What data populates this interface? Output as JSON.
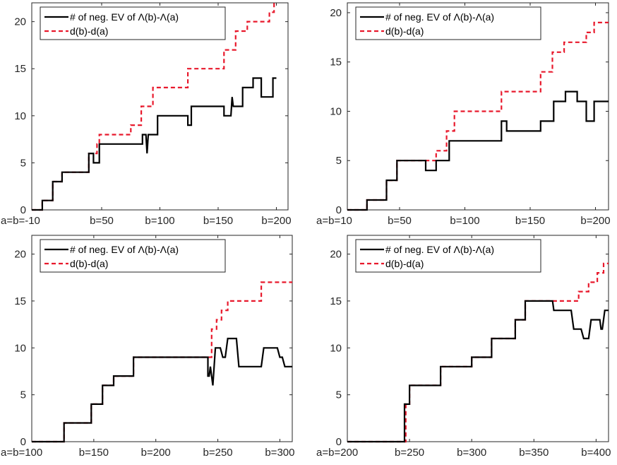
{
  "chart_data": [
    {
      "type": "line",
      "xlim": [
        -10,
        210
      ],
      "ylim": [
        0,
        22
      ],
      "x_ticks": [
        -10,
        50,
        100,
        150,
        200
      ],
      "x_tick_labels": [
        "a=b=-10",
        "b=50",
        "b=100",
        "b=150",
        "b=200"
      ],
      "y_ticks": [
        0,
        5,
        10,
        15,
        20
      ],
      "y_tick_labels": [
        "0",
        "5",
        "10",
        "15",
        "20"
      ],
      "legend_position": "top-left",
      "grid": false,
      "series": [
        {
          "name": "# of neg. EV of Λ(b)-Λ(a)",
          "color": "#000000",
          "style": "solid",
          "points": [
            [
              -10,
              0
            ],
            [
              -1,
              0
            ],
            [
              -1,
              1
            ],
            [
              8,
              1
            ],
            [
              8,
              3
            ],
            [
              16,
              3
            ],
            [
              16,
              4
            ],
            [
              39,
              4
            ],
            [
              39,
              6
            ],
            [
              43,
              6
            ],
            [
              43,
              5
            ],
            [
              48,
              5
            ],
            [
              48,
              7
            ],
            [
              85,
              7
            ],
            [
              85,
              8
            ],
            [
              88,
              8
            ],
            [
              89,
              6
            ],
            [
              90,
              8
            ],
            [
              98,
              8
            ],
            [
              98,
              10
            ],
            [
              124,
              10
            ],
            [
              124,
              9
            ],
            [
              127,
              9
            ],
            [
              127,
              11
            ],
            [
              155,
              11
            ],
            [
              155,
              10
            ],
            [
              161,
              10
            ],
            [
              162,
              12
            ],
            [
              163,
              11
            ],
            [
              171,
              11
            ],
            [
              171,
              13
            ],
            [
              180,
              13
            ],
            [
              180,
              14
            ],
            [
              187,
              14
            ],
            [
              187,
              12
            ],
            [
              197,
              12
            ],
            [
              197,
              14
            ],
            [
              200,
              14
            ]
          ]
        },
        {
          "name": "d(b)-d(a)",
          "color": "#e8192c",
          "style": "dashed",
          "points": [
            [
              -10,
              0
            ],
            [
              -1,
              0
            ],
            [
              -1,
              1
            ],
            [
              8,
              1
            ],
            [
              8,
              3
            ],
            [
              16,
              3
            ],
            [
              16,
              4
            ],
            [
              39,
              4
            ],
            [
              39,
              6
            ],
            [
              46,
              6
            ],
            [
              46,
              7
            ],
            [
              48,
              7
            ],
            [
              48,
              8
            ],
            [
              75,
              8
            ],
            [
              75,
              9
            ],
            [
              84,
              9
            ],
            [
              84,
              11
            ],
            [
              94,
              11
            ],
            [
              94,
              13
            ],
            [
              124,
              13
            ],
            [
              124,
              15
            ],
            [
              155,
              15
            ],
            [
              155,
              17
            ],
            [
              165,
              17
            ],
            [
              165,
              19
            ],
            [
              175,
              19
            ],
            [
              175,
              20
            ],
            [
              194,
              20
            ],
            [
              194,
              21
            ],
            [
              198,
              21
            ],
            [
              198,
              22
            ],
            [
              200,
              22
            ]
          ]
        }
      ]
    },
    {
      "type": "line",
      "xlim": [
        10,
        210
      ],
      "ylim": [
        0,
        21
      ],
      "x_ticks": [
        10,
        50,
        100,
        150,
        200
      ],
      "x_tick_labels": [
        "a=b=10",
        "b=50",
        "b=100",
        "b=150",
        "b=200"
      ],
      "y_ticks": [
        0,
        5,
        10,
        15,
        20
      ],
      "y_tick_labels": [
        "0",
        "5",
        "10",
        "15",
        "20"
      ],
      "legend_position": "top-left",
      "grid": false,
      "series": [
        {
          "name": "# of neg. EV of Λ(b)-Λ(a)",
          "color": "#000000",
          "style": "solid",
          "points": [
            [
              10,
              0
            ],
            [
              25,
              0
            ],
            [
              25,
              1
            ],
            [
              40,
              1
            ],
            [
              40,
              3
            ],
            [
              48,
              3
            ],
            [
              48,
              5
            ],
            [
              70,
              5
            ],
            [
              70,
              4
            ],
            [
              78,
              4
            ],
            [
              78,
              5
            ],
            [
              88,
              5
            ],
            [
              88,
              7
            ],
            [
              128,
              7
            ],
            [
              128,
              9
            ],
            [
              132,
              9
            ],
            [
              132,
              8
            ],
            [
              158,
              8
            ],
            [
              158,
              9
            ],
            [
              168,
              9
            ],
            [
              168,
              11
            ],
            [
              177,
              11
            ],
            [
              177,
              12
            ],
            [
              186,
              12
            ],
            [
              186,
              11
            ],
            [
              193,
              11
            ],
            [
              193,
              9
            ],
            [
              199,
              9
            ],
            [
              199,
              11
            ],
            [
              210,
              11
            ]
          ]
        },
        {
          "name": "d(b)-d(a)",
          "color": "#e8192c",
          "style": "dashed",
          "points": [
            [
              10,
              0
            ],
            [
              25,
              0
            ],
            [
              25,
              1
            ],
            [
              40,
              1
            ],
            [
              40,
              3
            ],
            [
              48,
              3
            ],
            [
              48,
              5
            ],
            [
              78,
              5
            ],
            [
              78,
              6
            ],
            [
              86,
              6
            ],
            [
              86,
              8
            ],
            [
              92,
              8
            ],
            [
              92,
              10
            ],
            [
              128,
              10
            ],
            [
              128,
              12
            ],
            [
              158,
              12
            ],
            [
              158,
              14
            ],
            [
              167,
              14
            ],
            [
              167,
              16
            ],
            [
              176,
              16
            ],
            [
              176,
              17
            ],
            [
              193,
              17
            ],
            [
              193,
              18
            ],
            [
              199,
              18
            ],
            [
              199,
              19
            ],
            [
              210,
              19
            ]
          ]
        }
      ]
    },
    {
      "type": "line",
      "xlim": [
        100,
        310
      ],
      "ylim": [
        0,
        22
      ],
      "x_ticks": [
        100,
        150,
        200,
        250,
        300
      ],
      "x_tick_labels": [
        "a=b=100",
        "b=150",
        "b=200",
        "b=250",
        "b=300"
      ],
      "y_ticks": [
        0,
        5,
        10,
        15,
        20
      ],
      "y_tick_labels": [
        "0",
        "5",
        "10",
        "15",
        "20"
      ],
      "legend_position": "top-left",
      "grid": false,
      "series": [
        {
          "name": "# of neg. EV of Λ(b)-Λ(a)",
          "color": "#000000",
          "style": "solid",
          "points": [
            [
              100,
              0
            ],
            [
              126,
              0
            ],
            [
              126,
              2
            ],
            [
              148,
              2
            ],
            [
              148,
              4
            ],
            [
              157,
              4
            ],
            [
              157,
              6
            ],
            [
              166,
              6
            ],
            [
              166,
              7
            ],
            [
              182,
              7
            ],
            [
              182,
              9
            ],
            [
              242,
              9
            ],
            [
              242,
              7
            ],
            [
              243,
              7
            ],
            [
              244,
              8
            ],
            [
              246,
              6
            ],
            [
              248,
              10
            ],
            [
              252,
              10
            ],
            [
              254,
              9
            ],
            [
              256,
              9
            ],
            [
              258,
              11
            ],
            [
              265,
              11
            ],
            [
              267,
              8
            ],
            [
              285,
              8
            ],
            [
              287,
              10
            ],
            [
              298,
              10
            ],
            [
              300,
              9
            ],
            [
              302,
              9
            ],
            [
              304,
              8
            ],
            [
              310,
              8
            ]
          ]
        },
        {
          "name": "d(b)-d(a)",
          "color": "#e8192c",
          "style": "dashed",
          "points": [
            [
              100,
              0
            ],
            [
              126,
              0
            ],
            [
              126,
              2
            ],
            [
              148,
              2
            ],
            [
              148,
              4
            ],
            [
              157,
              4
            ],
            [
              157,
              6
            ],
            [
              166,
              6
            ],
            [
              166,
              7
            ],
            [
              182,
              7
            ],
            [
              182,
              9
            ],
            [
              245,
              9
            ],
            [
              245,
              12
            ],
            [
              249,
              12
            ],
            [
              249,
              13
            ],
            [
              253,
              13
            ],
            [
              253,
              14
            ],
            [
              258,
              14
            ],
            [
              258,
              15
            ],
            [
              285,
              15
            ],
            [
              285,
              17
            ],
            [
              310,
              17
            ]
          ]
        }
      ]
    },
    {
      "type": "line",
      "xlim": [
        200,
        410
      ],
      "ylim": [
        0,
        22
      ],
      "x_ticks": [
        200,
        250,
        300,
        350,
        400
      ],
      "x_tick_labels": [
        "a=b=200",
        "b=250",
        "b=300",
        "b=350",
        "b=400"
      ],
      "y_ticks": [
        0,
        5,
        10,
        15,
        20
      ],
      "y_tick_labels": [
        "0",
        "5",
        "10",
        "15",
        "20"
      ],
      "legend_position": "top-left",
      "grid": false,
      "series": [
        {
          "name": "# of neg. EV of Λ(b)-Λ(a)",
          "color": "#000000",
          "style": "solid",
          "points": [
            [
              200,
              0
            ],
            [
              246,
              0
            ],
            [
              246,
              4
            ],
            [
              250,
              4
            ],
            [
              250,
              6
            ],
            [
              275,
              6
            ],
            [
              275,
              8
            ],
            [
              300,
              8
            ],
            [
              300,
              9
            ],
            [
              316,
              9
            ],
            [
              316,
              11
            ],
            [
              335,
              11
            ],
            [
              335,
              13
            ],
            [
              343,
              13
            ],
            [
              343,
              15
            ],
            [
              365,
              15
            ],
            [
              366,
              14
            ],
            [
              380,
              14
            ],
            [
              382,
              12
            ],
            [
              388,
              12
            ],
            [
              390,
              11
            ],
            [
              394,
              11
            ],
            [
              396,
              13
            ],
            [
              403,
              13
            ],
            [
              404,
              12
            ],
            [
              405,
              12
            ],
            [
              407,
              14
            ],
            [
              410,
              14
            ]
          ]
        },
        {
          "name": "d(b)-d(a)",
          "color": "#e8192c",
          "style": "dashed",
          "points": [
            [
              200,
              0
            ],
            [
              247,
              0
            ],
            [
              247,
              4
            ],
            [
              250,
              4
            ],
            [
              250,
              6
            ],
            [
              275,
              6
            ],
            [
              275,
              8
            ],
            [
              300,
              8
            ],
            [
              300,
              9
            ],
            [
              316,
              9
            ],
            [
              316,
              11
            ],
            [
              335,
              11
            ],
            [
              335,
              13
            ],
            [
              343,
              13
            ],
            [
              343,
              15
            ],
            [
              386,
              15
            ],
            [
              386,
              16
            ],
            [
              394,
              16
            ],
            [
              394,
              17
            ],
            [
              401,
              17
            ],
            [
              401,
              18
            ],
            [
              406,
              18
            ],
            [
              406,
              19
            ],
            [
              410,
              19
            ]
          ]
        }
      ]
    }
  ]
}
